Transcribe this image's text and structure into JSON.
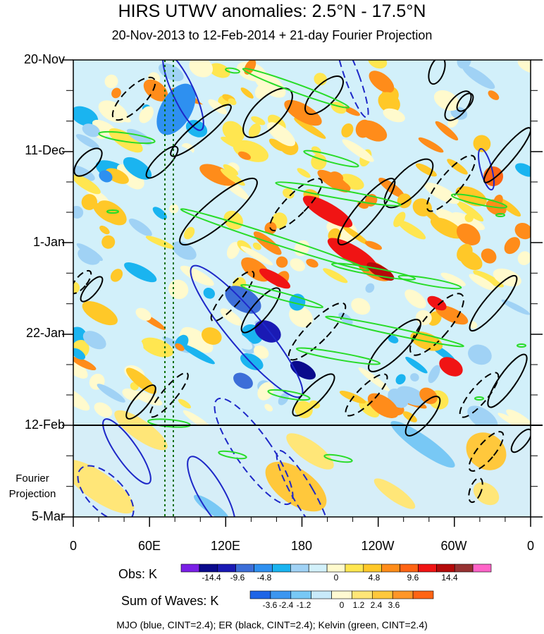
{
  "title": "HIRS UTWV anomalies: 2.5°N - 17.5°N",
  "subtitle": "20-Nov-2013 to 12-Feb-2014 + 21-day Fourier Projection",
  "y_labels": [
    "20-Nov",
    "11-Dec",
    "1-Jan",
    "22-Jan",
    "12-Feb",
    "5-Mar"
  ],
  "projection_label": [
    "Fourier",
    "Projection"
  ],
  "x_labels": [
    "0",
    "60E",
    "120E",
    "180",
    "120W",
    "60W",
    "0"
  ],
  "obs_label": "Obs: K",
  "obs_ticks": [
    "-14.4",
    "-9.6",
    "-4.8",
    "0",
    "4.8",
    "9.6",
    "14.4"
  ],
  "waves_label": "Sum of Waves: K",
  "waves_ticks": [
    "-3.6",
    "-2.4",
    "-1.2",
    "0",
    "1.2",
    "2.4",
    "3.6"
  ],
  "footer": "MJO (blue, CINT=2.4); ER (black, CINT=2.4); Kelvin (green, CINT=2.4)",
  "colors": {
    "obs_scale": [
      "#7a1fe6",
      "#0a0a8c",
      "#1a1ab4",
      "#3c6ed8",
      "#2e90f0",
      "#1ab4f0",
      "#a0d2f5",
      "#d2f0fa",
      "#fffacd",
      "#ffe650",
      "#ffc828",
      "#ff8c1a",
      "#ff6414",
      "#f01414",
      "#b40a0a",
      "#963232",
      "#ff64c8"
    ],
    "wave_scale": [
      "#1e64e6",
      "#3c96f0",
      "#78c8f5",
      "#c8eafa",
      "#fffad2",
      "#ffe678",
      "#ffc83c",
      "#ff9628",
      "#ff6414"
    ],
    "mjo": "#1e28c8",
    "er": "#000000",
    "kelvin": "#28dc28"
  },
  "chart_data": {
    "type": "heatmap",
    "title": "HIRS UTWV anomalies: 2.5°N - 17.5°N",
    "x_axis": "longitude",
    "x_ticks": [
      "0",
      "60E",
      "120E",
      "180",
      "120W",
      "60W",
      "0"
    ],
    "xlim": [
      0,
      360
    ],
    "y_axis": "time",
    "y_ticks": [
      "20-Nov",
      "11-Dec",
      "1-Jan",
      "22-Jan",
      "12-Feb",
      "5-Mar"
    ],
    "observation_end": "12-Feb",
    "obs_colorbar_ticks": [
      -14.4,
      -9.6,
      -4.8,
      0,
      4.8,
      9.6,
      14.4
    ],
    "waves_colorbar_ticks": [
      -3.6,
      -2.4,
      -1.2,
      0,
      1.2,
      2.4,
      3.6
    ],
    "contours": [
      {
        "name": "MJO",
        "color": "blue",
        "cint": 2.4
      },
      {
        "name": "ER",
        "color": "black",
        "cint": 2.4
      },
      {
        "name": "Kelvin",
        "color": "green",
        "cint": 2.4
      }
    ]
  }
}
